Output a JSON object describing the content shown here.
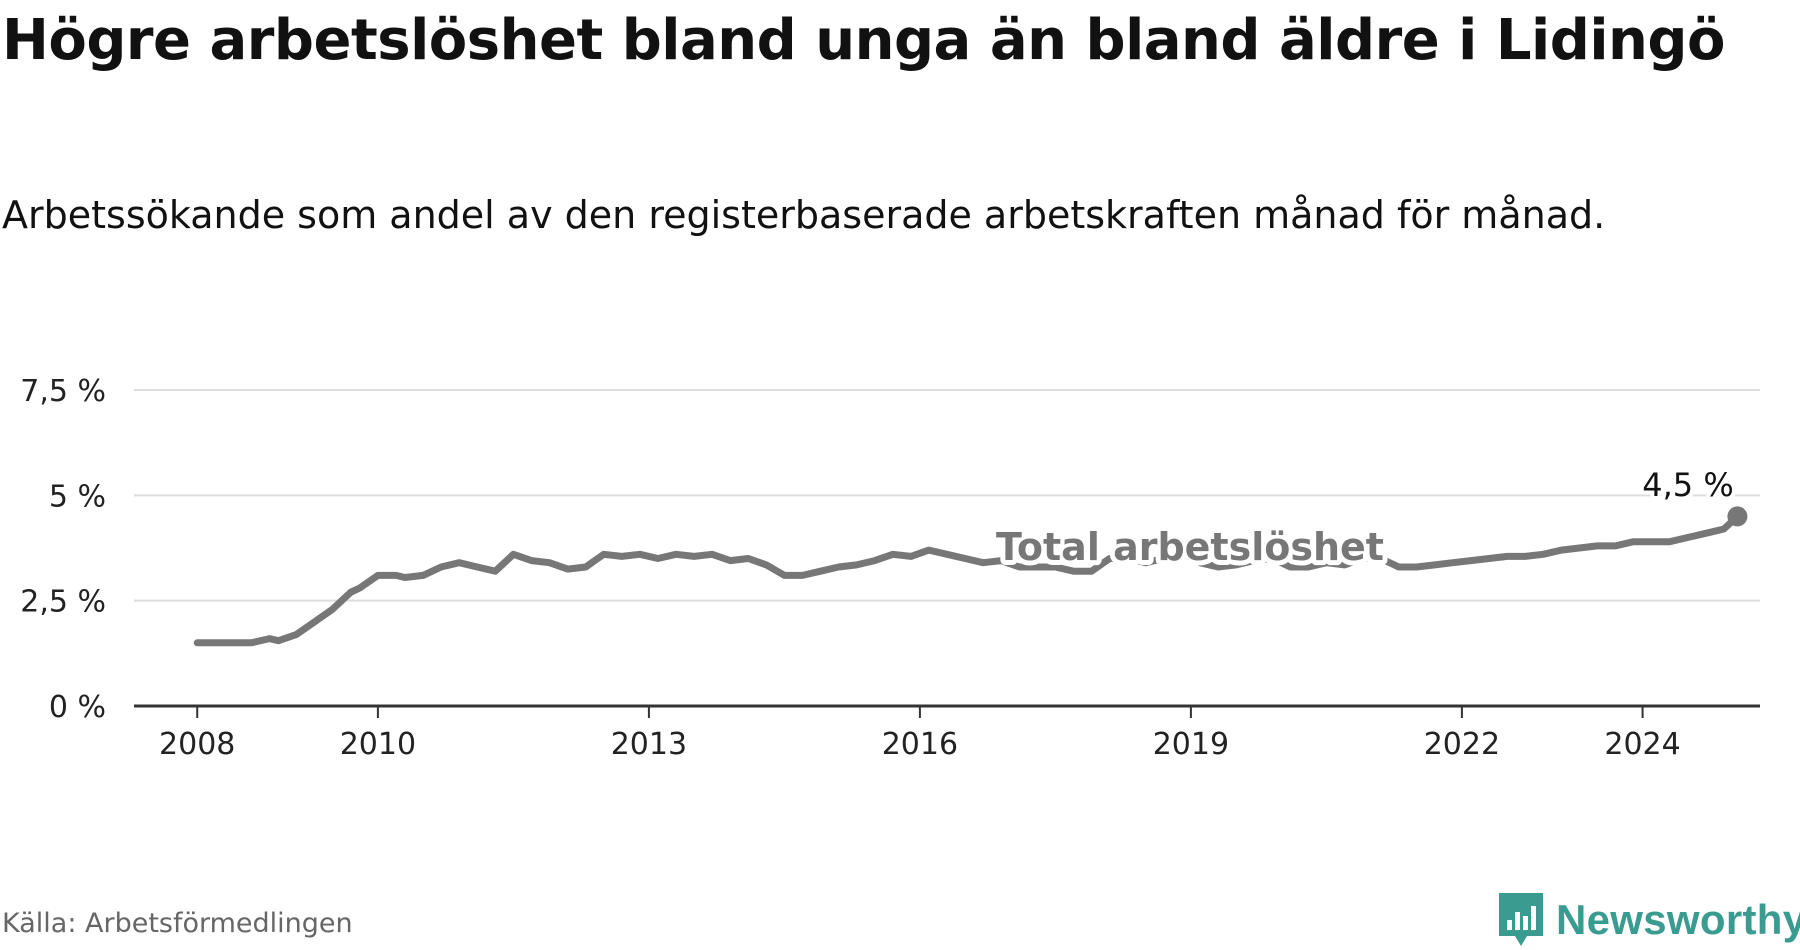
{
  "header": {
    "title": "Högre arbetslöshet bland unga än bland äldre i Lidingö",
    "subtitle": "Arbetssökande som andel av den registerbaserade arbetskraften månad för månad."
  },
  "footer": {
    "source": "Källa: Arbetsförmedlingen",
    "logo_text": "Newsworthy"
  },
  "colors": {
    "youth": "#16a497",
    "total": "#777777",
    "grid": "#dddddd",
    "axis": "#333333",
    "logo": "#3a9c90"
  },
  "chart_data": {
    "type": "line",
    "title": "Högre arbetslöshet bland unga än bland äldre i Lidingö",
    "xlabel": "",
    "ylabel": "",
    "xlim": [
      2007.3,
      2025.3
    ],
    "ylim": [
      0,
      7.5
    ],
    "y_ticks": [
      {
        "value": 0,
        "label": "0 %"
      },
      {
        "value": 2.5,
        "label": "2,5 %"
      },
      {
        "value": 5,
        "label": "5 %"
      },
      {
        "value": 7.5,
        "label": "7,5 %"
      }
    ],
    "x_ticks": [
      {
        "value": 2008,
        "label": "2008"
      },
      {
        "value": 2010,
        "label": "2010"
      },
      {
        "value": 2013,
        "label": "2013"
      },
      {
        "value": 2016,
        "label": "2016"
      },
      {
        "value": 2019,
        "label": "2019"
      },
      {
        "value": 2022,
        "label": "2022"
      },
      {
        "value": 2024,
        "label": "2024"
      }
    ],
    "series": [
      {
        "name": "Total arbetslöshet",
        "key": "total",
        "label": "Total arbetslöshet",
        "end_label": "4,5 %",
        "points": [
          [
            2008.0,
            1.5
          ],
          [
            2008.2,
            1.5
          ],
          [
            2008.4,
            1.5
          ],
          [
            2008.6,
            1.5
          ],
          [
            2008.8,
            1.6
          ],
          [
            2008.9,
            1.55
          ],
          [
            2009.1,
            1.7
          ],
          [
            2009.3,
            2.0
          ],
          [
            2009.5,
            2.3
          ],
          [
            2009.7,
            2.7
          ],
          [
            2009.8,
            2.8
          ],
          [
            2010.0,
            3.1
          ],
          [
            2010.2,
            3.1
          ],
          [
            2010.3,
            3.05
          ],
          [
            2010.5,
            3.1
          ],
          [
            2010.7,
            3.3
          ],
          [
            2010.9,
            3.4
          ],
          [
            2011.1,
            3.3
          ],
          [
            2011.3,
            3.2
          ],
          [
            2011.5,
            3.6
          ],
          [
            2011.7,
            3.45
          ],
          [
            2011.9,
            3.4
          ],
          [
            2012.1,
            3.25
          ],
          [
            2012.3,
            3.3
          ],
          [
            2012.5,
            3.6
          ],
          [
            2012.7,
            3.55
          ],
          [
            2012.9,
            3.6
          ],
          [
            2013.1,
            3.5
          ],
          [
            2013.3,
            3.6
          ],
          [
            2013.5,
            3.55
          ],
          [
            2013.7,
            3.6
          ],
          [
            2013.9,
            3.45
          ],
          [
            2014.1,
            3.5
          ],
          [
            2014.3,
            3.35
          ],
          [
            2014.5,
            3.1
          ],
          [
            2014.7,
            3.1
          ],
          [
            2014.9,
            3.2
          ],
          [
            2015.1,
            3.3
          ],
          [
            2015.3,
            3.35
          ],
          [
            2015.5,
            3.45
          ],
          [
            2015.7,
            3.6
          ],
          [
            2015.9,
            3.55
          ],
          [
            2016.1,
            3.7
          ],
          [
            2016.3,
            3.6
          ],
          [
            2016.5,
            3.5
          ],
          [
            2016.7,
            3.4
          ],
          [
            2016.9,
            3.45
          ],
          [
            2017.1,
            3.3
          ],
          [
            2017.3,
            3.3
          ],
          [
            2017.5,
            3.3
          ],
          [
            2017.7,
            3.2
          ],
          [
            2017.9,
            3.2
          ],
          [
            2018.1,
            3.5
          ],
          [
            2018.3,
            3.5
          ],
          [
            2018.5,
            3.4
          ],
          [
            2018.7,
            3.5
          ],
          [
            2018.9,
            3.6
          ],
          [
            2019.1,
            3.4
          ],
          [
            2019.3,
            3.3
          ],
          [
            2019.5,
            3.35
          ],
          [
            2019.7,
            3.45
          ],
          [
            2019.9,
            3.5
          ],
          [
            2020.1,
            3.3
          ],
          [
            2020.3,
            3.3
          ],
          [
            2020.5,
            3.4
          ],
          [
            2020.7,
            3.35
          ],
          [
            2020.9,
            3.5
          ],
          [
            2021.1,
            3.5
          ],
          [
            2021.3,
            3.3
          ],
          [
            2021.5,
            3.3
          ],
          [
            2021.7,
            3.35
          ],
          [
            2021.9,
            3.4
          ],
          [
            2022.1,
            3.45
          ],
          [
            2022.3,
            3.5
          ],
          [
            2022.5,
            3.55
          ],
          [
            2022.7,
            3.55
          ],
          [
            2022.9,
            3.6
          ],
          [
            2023.1,
            3.7
          ],
          [
            2023.3,
            3.75
          ],
          [
            2023.5,
            3.8
          ],
          [
            2023.7,
            3.8
          ],
          [
            2023.9,
            3.9
          ],
          [
            2024.1,
            3.9
          ],
          [
            2024.3,
            3.9
          ],
          [
            2024.5,
            4.0
          ],
          [
            2024.7,
            4.1
          ],
          [
            2024.9,
            4.2
          ],
          [
            2025.05,
            4.5
          ]
        ]
      }
    ]
  }
}
